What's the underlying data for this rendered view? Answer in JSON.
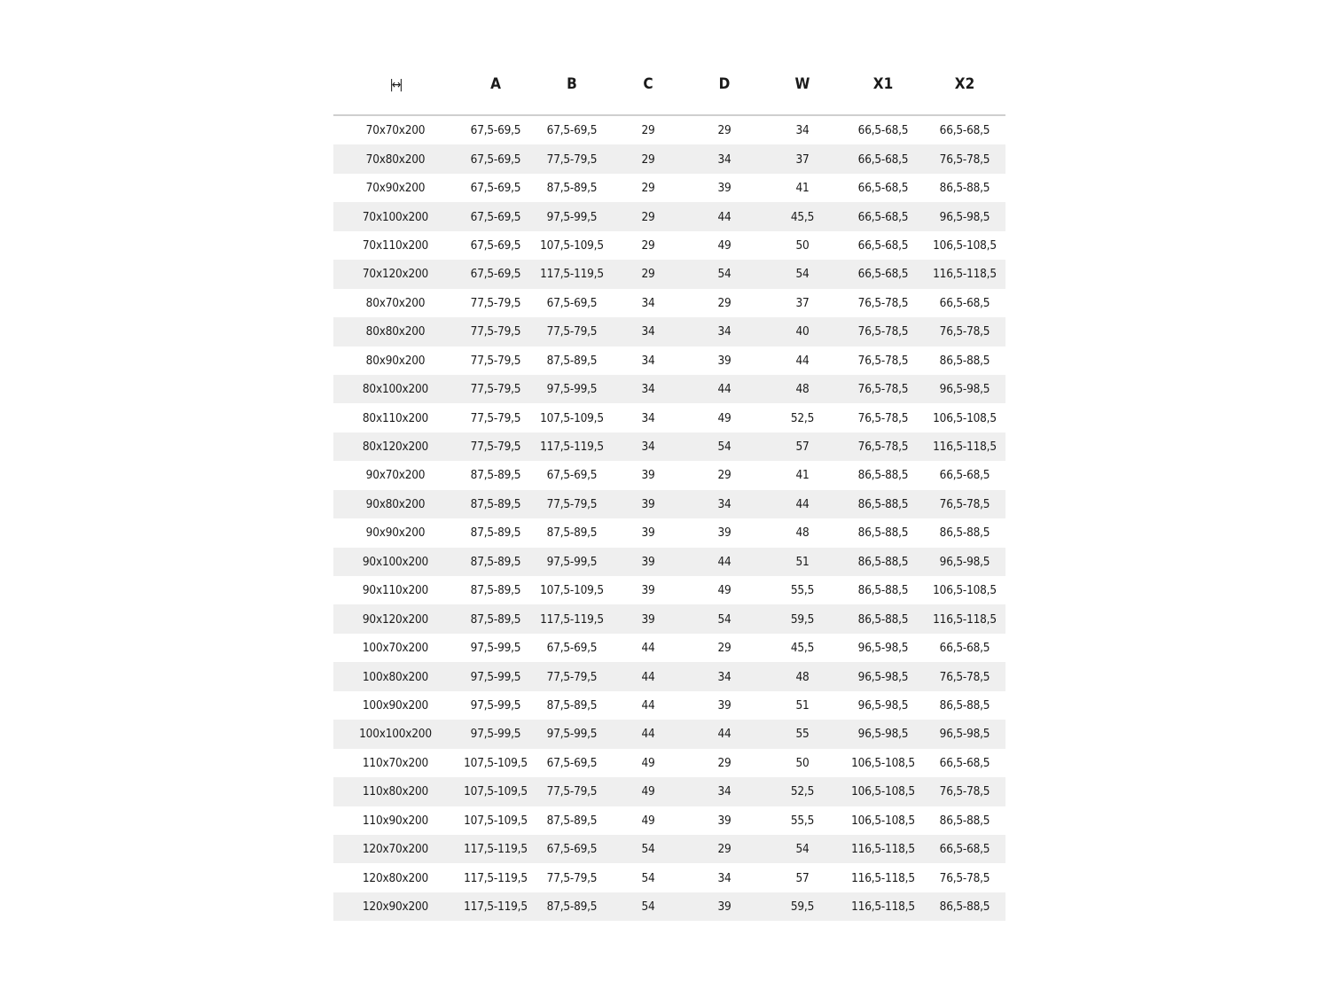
{
  "table": {
    "header_icon": "width-arrows-icon",
    "header_icon_glyph": "|↔|",
    "columns": [
      "A",
      "B",
      "C",
      "D",
      "W",
      "X1",
      "X2"
    ],
    "rows": [
      [
        "70x70x200",
        "67,5-69,5",
        "67,5-69,5",
        "29",
        "29",
        "34",
        "66,5-68,5",
        "66,5-68,5"
      ],
      [
        "70x80x200",
        "67,5-69,5",
        "77,5-79,5",
        "29",
        "34",
        "37",
        "66,5-68,5",
        "76,5-78,5"
      ],
      [
        "70x90x200",
        "67,5-69,5",
        "87,5-89,5",
        "29",
        "39",
        "41",
        "66,5-68,5",
        "86,5-88,5"
      ],
      [
        "70x100x200",
        "67,5-69,5",
        "97,5-99,5",
        "29",
        "44",
        "45,5",
        "66,5-68,5",
        "96,5-98,5"
      ],
      [
        "70x110x200",
        "67,5-69,5",
        "107,5-109,5",
        "29",
        "49",
        "50",
        "66,5-68,5",
        "106,5-108,5"
      ],
      [
        "70x120x200",
        "67,5-69,5",
        "117,5-119,5",
        "29",
        "54",
        "54",
        "66,5-68,5",
        "116,5-118,5"
      ],
      [
        "80x70x200",
        "77,5-79,5",
        "67,5-69,5",
        "34",
        "29",
        "37",
        "76,5-78,5",
        "66,5-68,5"
      ],
      [
        "80x80x200",
        "77,5-79,5",
        "77,5-79,5",
        "34",
        "34",
        "40",
        "76,5-78,5",
        "76,5-78,5"
      ],
      [
        "80x90x200",
        "77,5-79,5",
        "87,5-89,5",
        "34",
        "39",
        "44",
        "76,5-78,5",
        "86,5-88,5"
      ],
      [
        "80x100x200",
        "77,5-79,5",
        "97,5-99,5",
        "34",
        "44",
        "48",
        "76,5-78,5",
        "96,5-98,5"
      ],
      [
        "80x110x200",
        "77,5-79,5",
        "107,5-109,5",
        "34",
        "49",
        "52,5",
        "76,5-78,5",
        "106,5-108,5"
      ],
      [
        "80x120x200",
        "77,5-79,5",
        "117,5-119,5",
        "34",
        "54",
        "57",
        "76,5-78,5",
        "116,5-118,5"
      ],
      [
        "90x70x200",
        "87,5-89,5",
        "67,5-69,5",
        "39",
        "29",
        "41",
        "86,5-88,5",
        "66,5-68,5"
      ],
      [
        "90x80x200",
        "87,5-89,5",
        "77,5-79,5",
        "39",
        "34",
        "44",
        "86,5-88,5",
        "76,5-78,5"
      ],
      [
        "90x90x200",
        "87,5-89,5",
        "87,5-89,5",
        "39",
        "39",
        "48",
        "86,5-88,5",
        "86,5-88,5"
      ],
      [
        "90x100x200",
        "87,5-89,5",
        "97,5-99,5",
        "39",
        "44",
        "51",
        "86,5-88,5",
        "96,5-98,5"
      ],
      [
        "90x110x200",
        "87,5-89,5",
        "107,5-109,5",
        "39",
        "49",
        "55,5",
        "86,5-88,5",
        "106,5-108,5"
      ],
      [
        "90x120x200",
        "87,5-89,5",
        "117,5-119,5",
        "39",
        "54",
        "59,5",
        "86,5-88,5",
        "116,5-118,5"
      ],
      [
        "100x70x200",
        "97,5-99,5",
        "67,5-69,5",
        "44",
        "29",
        "45,5",
        "96,5-98,5",
        "66,5-68,5"
      ],
      [
        "100x80x200",
        "97,5-99,5",
        "77,5-79,5",
        "44",
        "34",
        "48",
        "96,5-98,5",
        "76,5-78,5"
      ],
      [
        "100x90x200",
        "97,5-99,5",
        "87,5-89,5",
        "44",
        "39",
        "51",
        "96,5-98,5",
        "86,5-88,5"
      ],
      [
        "100x100x200",
        "97,5-99,5",
        "97,5-99,5",
        "44",
        "44",
        "55",
        "96,5-98,5",
        "96,5-98,5"
      ],
      [
        "110x70x200",
        "107,5-109,5",
        "67,5-69,5",
        "49",
        "29",
        "50",
        "106,5-108,5",
        "66,5-68,5"
      ],
      [
        "110x80x200",
        "107,5-109,5",
        "77,5-79,5",
        "49",
        "34",
        "52,5",
        "106,5-108,5",
        "76,5-78,5"
      ],
      [
        "110x90x200",
        "107,5-109,5",
        "87,5-89,5",
        "49",
        "39",
        "55,5",
        "106,5-108,5",
        "86,5-88,5"
      ],
      [
        "120x70x200",
        "117,5-119,5",
        "67,5-69,5",
        "54",
        "29",
        "54",
        "116,5-118,5",
        "66,5-68,5"
      ],
      [
        "120x80x200",
        "117,5-119,5",
        "77,5-79,5",
        "54",
        "34",
        "57",
        "116,5-118,5",
        "76,5-78,5"
      ],
      [
        "120x90x200",
        "117,5-119,5",
        "87,5-89,5",
        "54",
        "39",
        "59,5",
        "116,5-118,5",
        "86,5-88,5"
      ]
    ]
  }
}
